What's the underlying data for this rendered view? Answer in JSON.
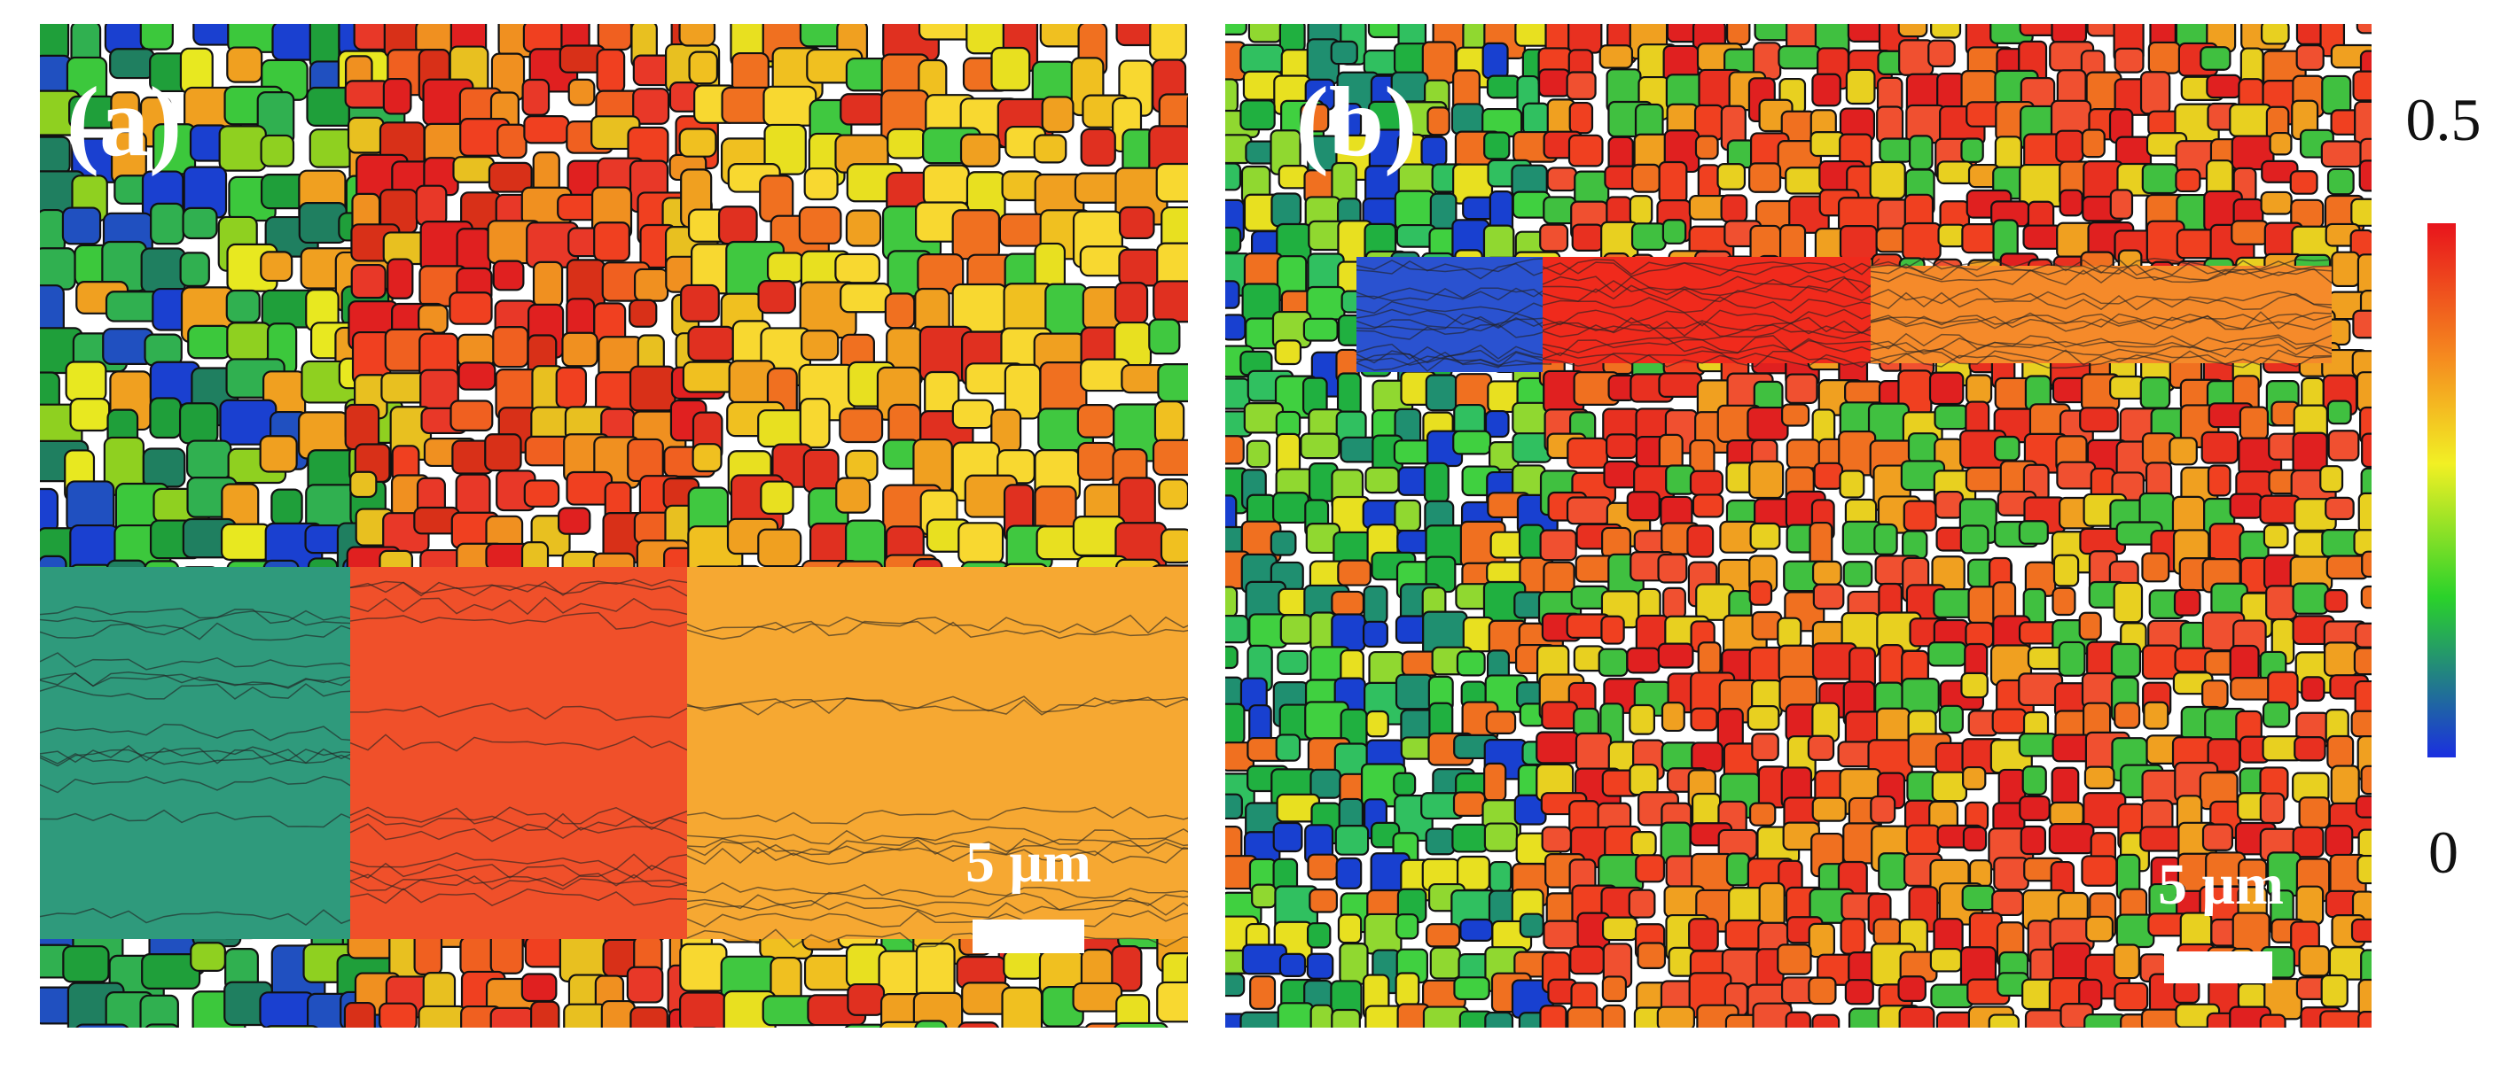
{
  "panels": [
    {
      "label": "(a)",
      "scale_bar": "5 μm"
    },
    {
      "label": "(b)",
      "scale_bar": "5 μm"
    }
  ],
  "colorbar": {
    "ticks": [
      0.5,
      0
    ]
  }
}
